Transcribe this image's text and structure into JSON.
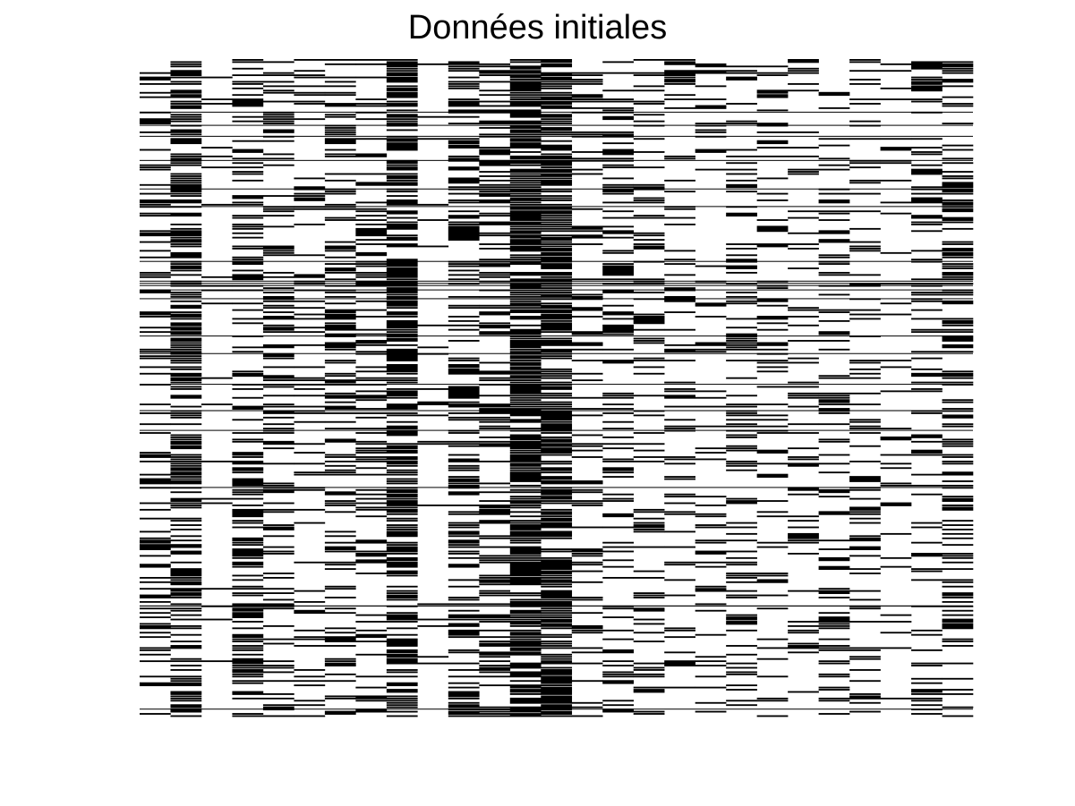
{
  "chart_data": {
    "type": "heatmap",
    "title": "Données initiales",
    "xlabel": "",
    "ylabel": "",
    "n_rows": 300,
    "n_cols": 27,
    "value_levels": [
      0,
      1
    ],
    "colors": {
      "0": "#ffffff",
      "1": "#000000"
    },
    "column_fill_ratios": [
      0.3,
      0.55,
      0.08,
      0.42,
      0.3,
      0.2,
      0.32,
      0.28,
      0.6,
      0.07,
      0.4,
      0.4,
      0.8,
      0.75,
      0.25,
      0.3,
      0.25,
      0.22,
      0.18,
      0.28,
      0.2,
      0.18,
      0.22,
      0.28,
      0.12,
      0.25,
      0.35
    ],
    "grid": false,
    "axes_visible": false,
    "colorbar": false
  }
}
